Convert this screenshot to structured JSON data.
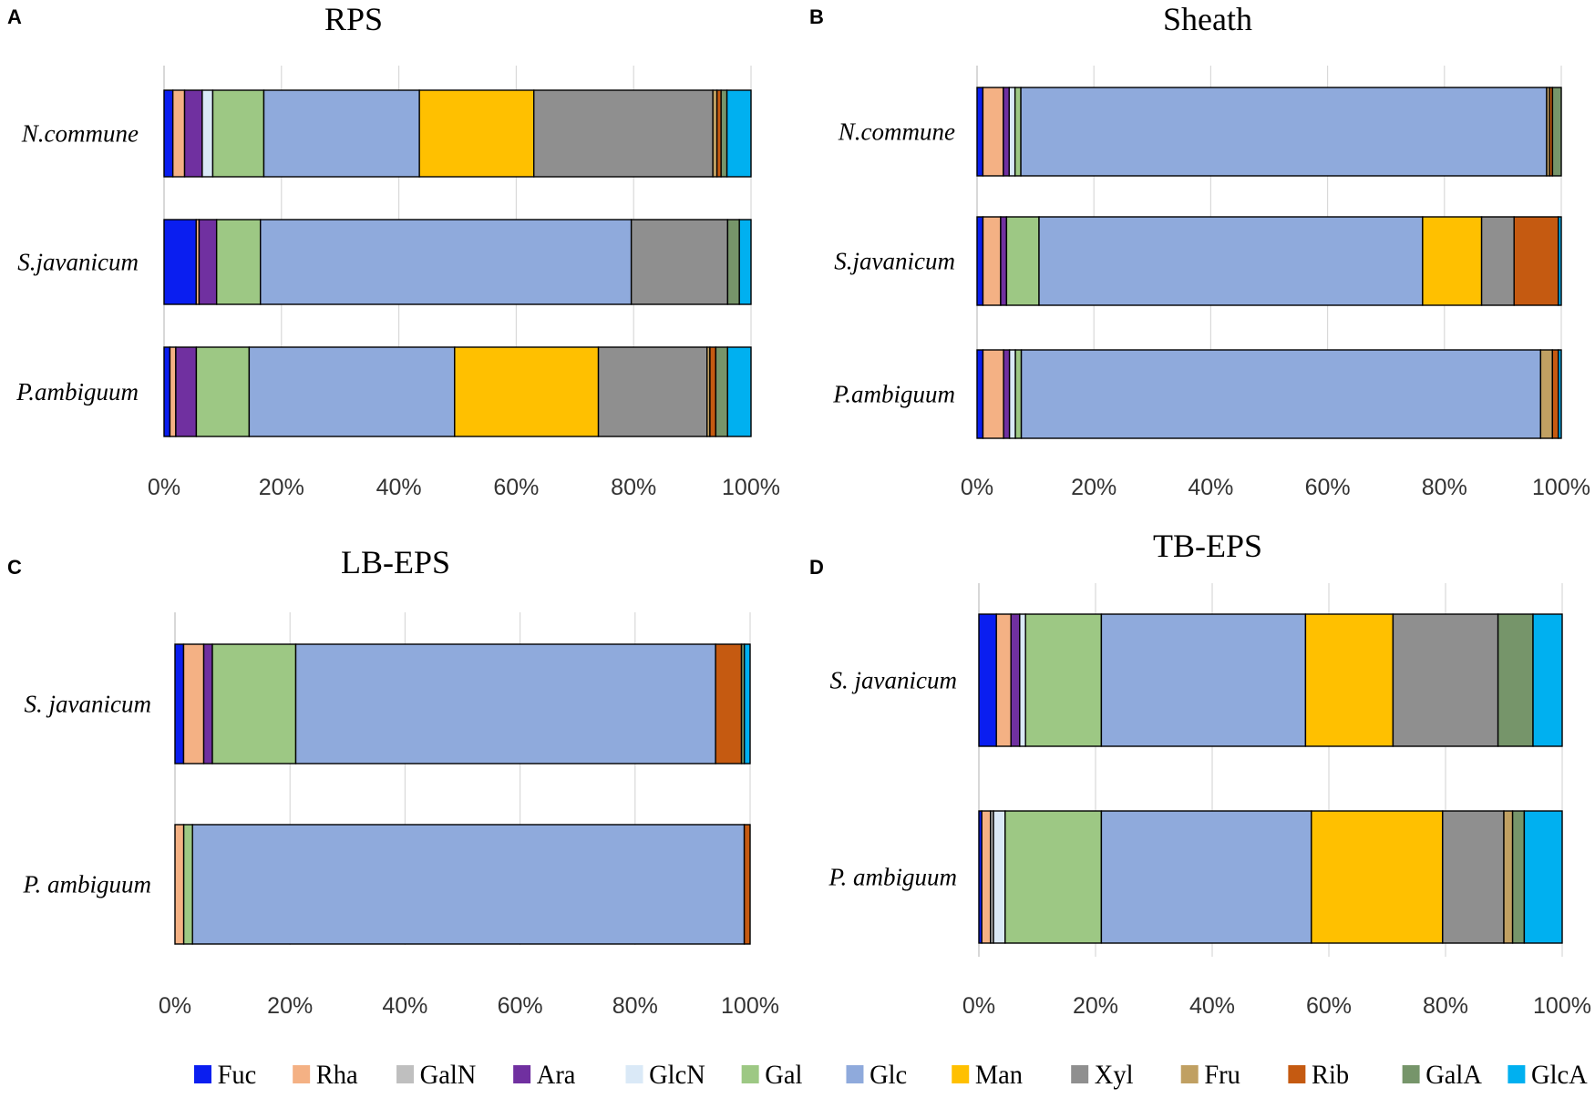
{
  "legend": [
    {
      "name": "Fuc",
      "color": "#0A1EF0"
    },
    {
      "name": "Rha",
      "color": "#F4B184"
    },
    {
      "name": "GalN",
      "color": "#BFBFBF"
    },
    {
      "name": "Ara",
      "color": "#7030A0"
    },
    {
      "name": "GlcN",
      "color": "#DAE9F7"
    },
    {
      "name": "Gal",
      "color": "#9DC884"
    },
    {
      "name": "Glc",
      "color": "#8FAADC"
    },
    {
      "name": "Man",
      "color": "#FFC000"
    },
    {
      "name": "Xyl",
      "color": "#8F8F8F"
    },
    {
      "name": "Fru",
      "color": "#C0A062"
    },
    {
      "name": "Rib",
      "color": "#C55A11"
    },
    {
      "name": "GalA",
      "color": "#76956A"
    },
    {
      "name": "GlcA",
      "color": "#00B0F0"
    }
  ],
  "chart_data": [
    {
      "type": "bar",
      "orientation": "horizontal",
      "stacked": "percent",
      "panel": "A",
      "title": "RPS",
      "categories": [
        "N.commune",
        "S.javanicum",
        "P.ambiguum"
      ],
      "series_names": [
        "Fuc",
        "Rha",
        "GalN",
        "Ara",
        "GlcN",
        "Gal",
        "Glc",
        "Man",
        "Xyl",
        "Fru",
        "Rib",
        "GalA",
        "GlcA"
      ],
      "values": [
        [
          1.5,
          2.0,
          0,
          3.0,
          1.8,
          8.7,
          26.5,
          19.5,
          30.5,
          0.7,
          0.7,
          1.0,
          4.1
        ],
        [
          5.5,
          0.5,
          0,
          3.0,
          0,
          7.5,
          63.5,
          0,
          16.5,
          0,
          0,
          2.0,
          2.0
        ],
        [
          1.0,
          1.0,
          0,
          3.5,
          0,
          9.0,
          35.0,
          24.5,
          18.5,
          0.5,
          1.0,
          2.0,
          4.0
        ]
      ],
      "xlabel": "",
      "ylabel": "",
      "xlim": [
        0,
        100
      ],
      "xticks": [
        "0%",
        "20%",
        "40%",
        "60%",
        "80%",
        "100%"
      ]
    },
    {
      "type": "bar",
      "orientation": "horizontal",
      "stacked": "percent",
      "panel": "B",
      "title": "Sheath",
      "categories": [
        "N.commune",
        "S.javanicum",
        "P.ambiguum"
      ],
      "series_names": [
        "Fuc",
        "Rha",
        "GalN",
        "Ara",
        "GlcN",
        "Gal",
        "Glc",
        "Man",
        "Xyl",
        "Fru",
        "Rib",
        "GalA",
        "GlcA"
      ],
      "values": [
        [
          1.0,
          3.5,
          0,
          1.0,
          1.0,
          1.0,
          90.0,
          0,
          0,
          0.5,
          0.5,
          1.5,
          0
        ],
        [
          1.0,
          3.0,
          0,
          1.0,
          0,
          5.5,
          65.0,
          10.0,
          5.5,
          0,
          7.5,
          0,
          0.5
        ],
        [
          1.0,
          3.5,
          0,
          1.0,
          1.0,
          1.0,
          88.0,
          0,
          0,
          2.0,
          1.0,
          0,
          0.5
        ]
      ],
      "xlabel": "",
      "ylabel": "",
      "xlim": [
        0,
        100
      ],
      "xticks": [
        "0%",
        "20%",
        "40%",
        "60%",
        "80%",
        "100%"
      ]
    },
    {
      "type": "bar",
      "orientation": "horizontal",
      "stacked": "percent",
      "panel": "C",
      "title": "LB-EPS",
      "categories": [
        "S. javanicum",
        "P. ambiguum"
      ],
      "series_names": [
        "Fuc",
        "Rha",
        "GalN",
        "Ara",
        "GlcN",
        "Gal",
        "Glc",
        "Man",
        "Xyl",
        "Fru",
        "Rib",
        "GalA",
        "GlcA"
      ],
      "values": [
        [
          1.5,
          3.5,
          0,
          1.5,
          0,
          14.5,
          73.0,
          0,
          0,
          0,
          4.5,
          0.5,
          1.0
        ],
        [
          0,
          1.5,
          0,
          0,
          0,
          1.5,
          94.5,
          0,
          0,
          0,
          1.0,
          0,
          0
        ]
      ],
      "xlabel": "",
      "ylabel": "",
      "xlim": [
        0,
        100
      ],
      "xticks": [
        "0%",
        "20%",
        "40%",
        "60%",
        "80%",
        "100%"
      ]
    },
    {
      "type": "bar",
      "orientation": "horizontal",
      "stacked": "percent",
      "panel": "D",
      "title": "TB-EPS",
      "categories": [
        "S. javanicum",
        "P. ambiguum"
      ],
      "series_names": [
        "Fuc",
        "Rha",
        "GalN",
        "Ara",
        "GlcN",
        "Gal",
        "Glc",
        "Man",
        "Xyl",
        "Fru",
        "Rib",
        "GalA",
        "GlcA"
      ],
      "values": [
        [
          3.0,
          2.5,
          0,
          1.5,
          1.0,
          13.0,
          35.0,
          15.0,
          18.0,
          0,
          0,
          6.0,
          5.0
        ],
        [
          0.5,
          1.5,
          0.5,
          0,
          2.0,
          16.5,
          36.0,
          22.5,
          10.5,
          1.5,
          0,
          2.0,
          6.5
        ]
      ],
      "xlabel": "",
      "ylabel": "",
      "xlim": [
        0,
        100
      ],
      "xticks": [
        "0%",
        "20%",
        "40%",
        "60%",
        "80%",
        "100%"
      ]
    }
  ]
}
